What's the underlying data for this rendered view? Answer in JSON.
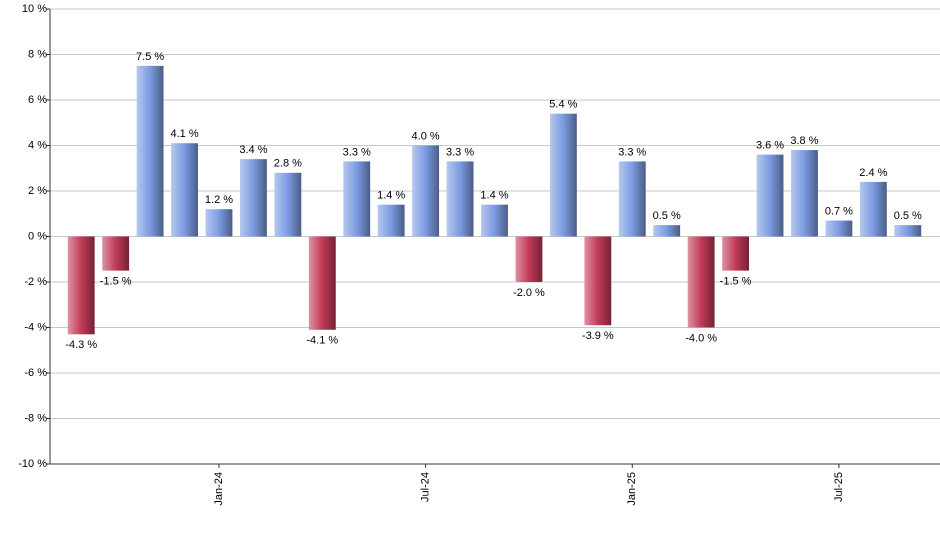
{
  "chart_data": {
    "type": "bar",
    "categories": [
      null,
      null,
      null,
      null,
      "Jan-24",
      null,
      null,
      null,
      null,
      null,
      "Jul-24",
      null,
      null,
      null,
      null,
      null,
      "Jan-25",
      null,
      null,
      null,
      null,
      null,
      "Jul-25",
      null,
      null
    ],
    "values": [
      -4.3,
      -1.5,
      7.5,
      4.1,
      1.2,
      3.4,
      2.8,
      -4.1,
      3.3,
      1.4,
      4.0,
      3.3,
      1.4,
      -2.0,
      5.4,
      -3.9,
      3.3,
      0.5,
      -4.0,
      -1.5,
      3.6,
      3.8,
      0.7,
      2.4,
      0.5
    ],
    "value_labels": [
      "-4.3 %",
      "-1.5 %",
      "7.5 %",
      "4.1 %",
      "1.2 %",
      "3.4 %",
      "2.8 %",
      "-4.1 %",
      "3.3 %",
      "1.4 %",
      "4.0 %",
      "3.3 %",
      "1.4 %",
      "-2.0 %",
      "5.4 %",
      "-3.9 %",
      "3.3 %",
      "0.5 %",
      "-4.0 %",
      "-1.5 %",
      "3.6 %",
      "3.8 %",
      "0.7 %",
      "2.4 %",
      "0.5 %"
    ],
    "positive_color": "#7b9be0",
    "negative_color": "#c23a58",
    "ylim": [
      -10,
      10
    ],
    "yticks": [
      {
        "value": -10,
        "label": "-10 %"
      },
      {
        "value": -8,
        "label": "-8 %"
      },
      {
        "value": -6,
        "label": "-6 %"
      },
      {
        "value": -4,
        "label": "-4 %"
      },
      {
        "value": -2,
        "label": "-2 %"
      },
      {
        "value": 0,
        "label": "0 %"
      },
      {
        "value": 2,
        "label": "2 %"
      },
      {
        "value": 4,
        "label": "4 %"
      },
      {
        "value": 6,
        "label": "6 %"
      },
      {
        "value": 8,
        "label": "8 %"
      },
      {
        "value": 10,
        "label": "10 %"
      }
    ],
    "grid": true
  }
}
